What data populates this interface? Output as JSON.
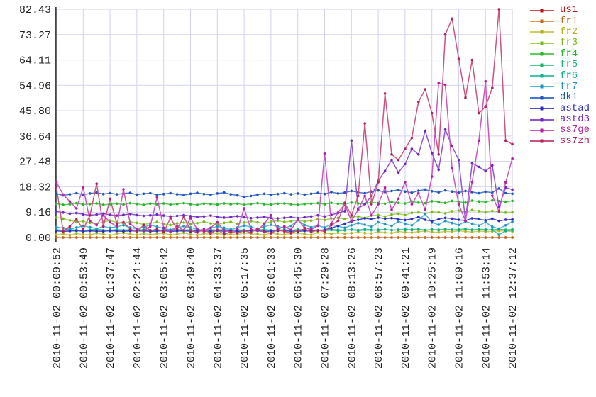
{
  "chart_data": {
    "type": "line",
    "title": "",
    "xlabel": "",
    "ylabel": "",
    "grid": true,
    "legend_position": "right",
    "ylim": [
      0,
      82.43
    ],
    "y_tick_labels": [
      "82.43",
      "73.27",
      "64.11",
      "54.96",
      "45.80",
      "36.64",
      "27.48",
      "18.32",
      "9.16",
      "0.00"
    ],
    "x_tick_labels": [
      "2010-11-02 00:09:52",
      "2010-11-02 00:53:49",
      "2010-11-02 01:37:47",
      "2010-11-02 02:21:44",
      "2010-11-02 03:05:42",
      "2010-11-02 03:49:40",
      "2010-11-02 04:33:37",
      "2010-11-02 05:17:35",
      "2010-11-02 06:01:33",
      "2010-11-02 06:45:30",
      "2010-11-02 07:29:28",
      "2010-11-02 08:13:26",
      "2010-11-02 08:57:23",
      "2010-11-02 09:41:21",
      "2010-11-02 10:25:19",
      "2010-11-02 11:09:16",
      "2010-11-02 11:53:14",
      "2010-11-02 12:37:12"
    ],
    "colors": {
      "axis": "#444444",
      "grid": "#d2d2f0",
      "label_text": "#222222"
    },
    "series": [
      {
        "name": "us1",
        "color": "#d05050",
        "dark": "#b01818",
        "values": [
          0,
          0,
          0,
          0,
          0,
          0,
          0,
          0,
          0,
          0,
          0,
          0,
          0,
          0,
          0,
          0,
          0,
          0,
          0,
          0,
          0,
          0,
          0,
          0,
          0,
          0,
          0,
          0,
          0,
          0,
          0,
          0,
          0,
          0,
          0,
          0,
          0,
          0,
          0,
          0,
          0,
          0,
          0,
          0,
          0,
          0,
          0,
          0,
          0,
          0,
          0,
          0,
          0,
          0,
          0,
          0,
          0,
          0,
          0,
          0,
          0,
          0,
          0,
          0,
          0,
          0,
          0,
          0,
          0
        ]
      },
      {
        "name": "fr1",
        "color": "#dd9955",
        "dark": "#c2691e",
        "values": [
          0,
          0,
          0,
          0,
          0,
          0,
          0,
          0,
          0,
          0,
          0,
          0,
          0,
          0,
          0,
          0,
          0,
          0,
          0,
          0,
          0,
          0,
          0,
          0,
          0,
          0,
          0,
          0,
          0,
          0,
          0,
          0,
          0,
          0,
          0,
          0,
          0,
          0,
          0,
          0,
          0,
          0,
          0,
          0,
          0,
          0,
          0,
          0,
          0,
          0,
          0,
          0,
          0,
          0,
          0,
          0,
          0,
          0,
          0,
          0,
          0,
          0,
          0,
          0,
          0,
          0,
          0,
          0,
          0
        ]
      },
      {
        "name": "fr2",
        "color": "#cfcf60",
        "dark": "#b2b21a",
        "values": [
          1.0,
          1.3,
          0.9,
          1.4,
          1.1,
          1.0,
          1.5,
          1.2,
          0.8,
          1.3,
          1.6,
          1.2,
          1.0,
          1.4,
          1.1,
          1.3,
          1.5,
          1.0,
          1.2,
          1.6,
          1.1,
          0.9,
          1.4,
          1.2,
          1.5,
          1.0,
          1.3,
          1.1,
          1.6,
          1.3,
          1.2,
          1.0,
          1.5,
          1.2,
          1.1,
          1.4,
          1.6,
          1.2,
          1.0,
          1.8,
          1.5,
          1.3,
          1.7,
          1.4,
          1.6,
          1.9,
          1.6,
          1.5,
          2.1,
          1.8,
          1.6,
          2.2,
          1.9,
          1.8,
          2.1,
          2.3,
          2.0,
          1.9,
          2.2,
          2.1,
          2.4,
          2.2,
          2.0,
          2.3,
          2.1,
          2.2,
          2.4,
          2.3,
          2.2
        ]
      },
      {
        "name": "fr3",
        "color": "#a3d45c",
        "dark": "#7ab71c",
        "values": [
          7.2,
          6.8,
          6.2,
          5.6,
          5.9,
          5.3,
          4.9,
          5.6,
          6.1,
          5.5,
          5.1,
          5.7,
          5.3,
          4.7,
          5.1,
          5.6,
          4.9,
          4.5,
          5.1,
          5.4,
          4.8,
          5.2,
          5.7,
          5.1,
          4.7,
          5.3,
          5.6,
          5.0,
          5.4,
          5.9,
          5.5,
          5.1,
          5.7,
          6.1,
          5.6,
          5.9,
          6.3,
          5.8,
          6.1,
          6.6,
          6.3,
          6.9,
          7.1,
          6.6,
          7.3,
          7.6,
          7.1,
          7.9,
          8.1,
          7.6,
          8.3,
          8.6,
          8.1,
          8.9,
          9.1,
          8.6,
          9.3,
          9.1,
          8.7,
          9.5,
          9.7,
          9.1,
          9.9,
          9.5,
          9.1,
          9.6,
          9.3,
          9.0,
          9.1
        ]
      },
      {
        "name": "fr4",
        "color": "#5ecc5e",
        "dark": "#2ab32a",
        "values": [
          12.2,
          11.8,
          12.0,
          12.4,
          11.9,
          12.1,
          12.3,
          11.8,
          12.0,
          12.2,
          11.9,
          12.4,
          12.1,
          11.8,
          12.2,
          12.0,
          12.3,
          11.9,
          12.1,
          12.4,
          12.0,
          11.8,
          12.2,
          12.1,
          11.9,
          12.3,
          12.0,
          12.2,
          11.8,
          12.1,
          12.4,
          12.0,
          11.9,
          12.2,
          12.3,
          12.0,
          11.8,
          12.1,
          12.2,
          12.4,
          12.0,
          12.5,
          12.2,
          12.0,
          12.6,
          12.3,
          12.1,
          12.8,
          12.4,
          12.2,
          12.9,
          12.5,
          12.3,
          13.0,
          12.6,
          12.4,
          13.1,
          12.8,
          12.5,
          13.2,
          12.9,
          12.6,
          13.3,
          13.0,
          12.8,
          13.4,
          13.1,
          12.9,
          13.2
        ]
      },
      {
        "name": "fr5",
        "color": "#4ccc86",
        "dark": "#17b36b",
        "values": [
          2.4,
          2.2,
          2.5,
          2.3,
          2.6,
          2.4,
          2.2,
          2.5,
          2.3,
          2.4,
          2.6,
          2.3,
          2.5,
          2.2,
          2.4,
          2.6,
          2.3,
          2.5,
          2.4,
          2.2,
          2.5,
          2.6,
          2.3,
          2.4,
          2.5,
          2.2,
          2.4,
          2.6,
          2.3,
          2.5,
          2.4,
          2.3,
          2.5,
          2.6,
          2.4,
          2.2,
          2.5,
          2.3,
          2.6,
          2.4,
          2.5,
          2.7,
          2.4,
          2.6,
          2.8,
          2.5,
          2.7,
          2.6,
          2.8,
          2.9,
          2.6,
          2.8,
          2.7,
          2.9,
          3.0,
          2.7,
          2.9,
          2.8,
          3.0,
          2.8,
          2.9,
          3.1,
          2.8,
          3.0,
          2.9,
          2.7,
          3.0,
          2.8,
          2.9
        ]
      },
      {
        "name": "fr6",
        "color": "#44c8a8",
        "dark": "#14ad8c",
        "values": [
          2.8,
          2.6,
          2.9,
          2.7,
          2.5,
          2.8,
          3.0,
          2.7,
          2.6,
          2.9,
          2.7,
          2.8,
          2.6,
          2.9,
          2.7,
          2.5,
          2.8,
          2.6,
          2.9,
          2.7,
          2.8,
          2.6,
          2.5,
          2.8,
          2.7,
          2.9,
          2.6,
          2.8,
          2.7,
          2.5,
          2.8,
          2.9,
          2.6,
          2.7,
          2.8,
          2.6,
          2.9,
          2.7,
          2.8,
          2.6,
          2.7,
          2.9,
          2.8,
          2.6,
          2.9,
          2.7,
          3.0,
          2.8,
          2.6,
          2.9,
          2.7,
          2.8,
          3.0,
          2.7,
          2.9,
          2.6,
          2.8,
          2.7,
          2.9,
          2.8,
          2.6,
          2.9,
          2.7,
          2.8,
          2.6,
          2.9,
          1.0,
          2.4,
          2.6
        ]
      },
      {
        "name": "fr7",
        "color": "#58b4d8",
        "dark": "#2292c0",
        "values": [
          3.8,
          3.4,
          3.0,
          3.6,
          4.2,
          3.7,
          3.2,
          4.0,
          3.5,
          3.9,
          4.4,
          3.6,
          3.1,
          3.8,
          4.5,
          3.9,
          3.3,
          2.8,
          3.5,
          4.1,
          3.6,
          3.0,
          2.6,
          3.4,
          4.0,
          3.5,
          2.9,
          3.6,
          4.3,
          3.8,
          3.2,
          3.9,
          4.6,
          4.0,
          3.4,
          4.2,
          6.3,
          4.5,
          3.7,
          4.3,
          3.6,
          4.8,
          4.1,
          3.5,
          4.4,
          5.2,
          4.6,
          3.9,
          5.5,
          4.8,
          4.2,
          5.8,
          5.0,
          4.4,
          6.2,
          8.5,
          5.4,
          4.6,
          6.0,
          5.2,
          4.5,
          5.8,
          5.0,
          4.3,
          5.5,
          3.9,
          3.2,
          4.4,
          5.7
        ]
      },
      {
        "name": "dk1",
        "color": "#4878d0",
        "dark": "#2255b8",
        "values": [
          15.8,
          15.2,
          15.6,
          16.0,
          15.5,
          15.9,
          16.2,
          15.7,
          16.0,
          15.6,
          15.9,
          16.1,
          15.5,
          15.8,
          16.0,
          15.4,
          15.7,
          16.0,
          15.6,
          15.3,
          15.8,
          16.1,
          15.7,
          15.4,
          15.9,
          16.2,
          15.6,
          15.2,
          14.6,
          15.0,
          15.5,
          15.8,
          15.4,
          15.7,
          16.0,
          15.6,
          15.9,
          15.5,
          15.8,
          16.1,
          15.7,
          16.4,
          15.9,
          16.2,
          16.8,
          16.3,
          16.0,
          16.6,
          17.0,
          16.4,
          16.8,
          17.2,
          16.6,
          16.2,
          16.9,
          17.3,
          16.7,
          16.3,
          17.0,
          16.6,
          16.2,
          16.8,
          16.4,
          16.0,
          16.5,
          16.2,
          17.7,
          16.0,
          15.8
        ]
      },
      {
        "name": "astad",
        "color": "#5050cc",
        "dark": "#2d2db5",
        "values": [
          2.4,
          2.2,
          2.3,
          2.5,
          2.2,
          2.4,
          2.3,
          2.2,
          2.5,
          2.3,
          2.2,
          2.4,
          2.3,
          2.5,
          2.2,
          2.3,
          2.4,
          2.2,
          2.3,
          2.5,
          2.2,
          2.4,
          2.3,
          2.2,
          2.5,
          2.3,
          2.4,
          2.2,
          2.3,
          2.5,
          2.4,
          2.2,
          2.3,
          2.4,
          2.5,
          2.3,
          2.2,
          2.4,
          2.3,
          2.5,
          2.8,
          3.4,
          4.2,
          5.0,
          5.8,
          6.4,
          6.9,
          6.6,
          7.2,
          6.8,
          7.0,
          6.6,
          6.3,
          6.7,
          7.4,
          6.4,
          5.9,
          6.6,
          7.1,
          6.8,
          6.4,
          6.1,
          6.9,
          6.6,
          6.2,
          6.8,
          6.0,
          6.4,
          6.5
        ]
      },
      {
        "name": "astd3",
        "color": "#9055d0",
        "dark": "#6e28bb",
        "values": [
          9.4,
          9.0,
          8.6,
          8.8,
          8.4,
          8.0,
          8.3,
          8.6,
          8.2,
          7.9,
          8.2,
          8.5,
          8.1,
          7.8,
          8.0,
          8.3,
          7.9,
          7.6,
          7.8,
          8.1,
          7.7,
          7.4,
          7.6,
          7.9,
          7.5,
          7.2,
          7.4,
          7.7,
          7.3,
          7.0,
          7.2,
          7.5,
          7.1,
          6.9,
          7.1,
          7.4,
          7.0,
          7.3,
          7.6,
          8.0,
          7.6,
          8.2,
          8.8,
          9.5,
          35.0,
          10.5,
          12.0,
          15.0,
          20.5,
          24.0,
          28.0,
          23.5,
          26.5,
          32.0,
          30.0,
          38.5,
          30.5,
          24.5,
          39.0,
          33.0,
          28.0,
          6.0,
          26.8,
          25.5,
          24.0,
          26.0,
          11.0,
          18.0,
          17.3
        ]
      },
      {
        "name": "ss7ge",
        "color": "#cc55bb",
        "dark": "#b222a2",
        "values": [
          20.0,
          15.5,
          13.0,
          10.5,
          18.1,
          6.0,
          4.5,
          8.0,
          5.5,
          4.0,
          17.4,
          5.0,
          3.0,
          2.5,
          4.0,
          14.5,
          3.5,
          2.0,
          4.0,
          2.5,
          7.0,
          3.0,
          2.2,
          3.5,
          5.5,
          2.5,
          2.0,
          3.0,
          10.5,
          3.0,
          2.5,
          5.0,
          8.0,
          3.0,
          4.0,
          2.8,
          6.5,
          3.5,
          3.0,
          4.2,
          30.3,
          5.0,
          9.0,
          12.0,
          6.0,
          10.0,
          15.0,
          8.0,
          12.0,
          18.0,
          10.0,
          14.0,
          20.0,
          12.0,
          16.0,
          10.0,
          22.0,
          55.8,
          55.1,
          25.0,
          12.0,
          6.0,
          20.0,
          35.0,
          56.4,
          15.1,
          9.5,
          19.9,
          28.5
        ]
      },
      {
        "name": "ss7zh",
        "color": "#cc5580",
        "dark": "#b22260",
        "values": [
          18.3,
          2.2,
          4.0,
          6.5,
          3.0,
          8.0,
          19.4,
          4.0,
          14.0,
          5.0,
          5.5,
          3.0,
          2.0,
          4.5,
          2.5,
          3.0,
          2.0,
          7.0,
          3.0,
          7.5,
          2.5,
          1.8,
          3.0,
          1.5,
          2.8,
          1.2,
          2.0,
          1.6,
          2.4,
          1.8,
          3.2,
          2.0,
          1.5,
          2.8,
          2.2,
          1.6,
          2.5,
          3.0,
          2.0,
          2.6,
          2.2,
          4.5,
          6.0,
          12.5,
          8.0,
          15.0,
          41.2,
          12.0,
          20.0,
          52.0,
          30.0,
          28.0,
          32.0,
          36.0,
          49.0,
          53.5,
          44.9,
          30.0,
          73.3,
          79.0,
          64.5,
          50.5,
          64.1,
          44.9,
          47.2,
          54.0,
          82.43,
          35.0,
          33.7
        ]
      }
    ]
  }
}
